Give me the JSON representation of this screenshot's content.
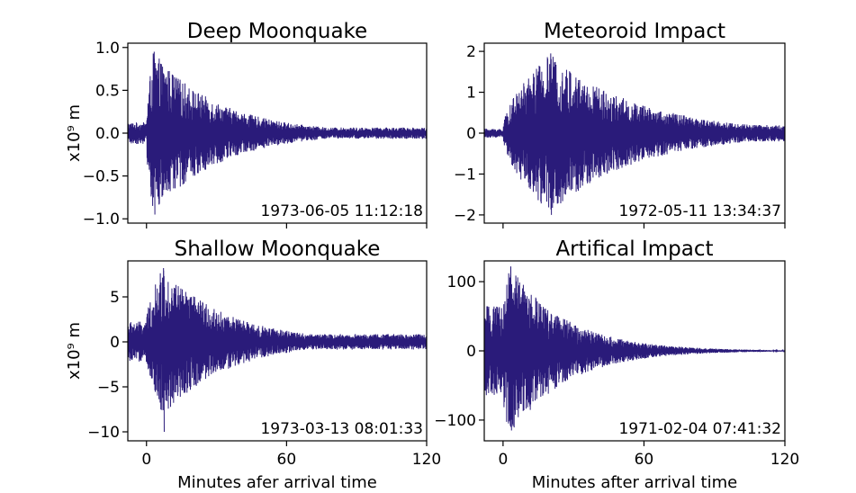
{
  "chart_data": [
    {
      "type": "line",
      "title": "Deep Moonquake",
      "timestamp": "1973-06-05 11:12:18",
      "xlabel": "",
      "ylabel": "x10⁹ m",
      "xlim": [
        -8,
        120
      ],
      "ylim": [
        -1.05,
        1.05
      ],
      "xticks": [
        0,
        60,
        120
      ],
      "yticks": [
        1.0,
        0.5,
        0.0,
        -0.5,
        -1.0
      ],
      "ytick_labels": [
        "1.0",
        "0.5",
        "0.0",
        "−0.5",
        "−1.0"
      ],
      "xtick_labels_shown": false,
      "envelope": {
        "onset": 0,
        "peak_time": 3,
        "peak": 0.95,
        "noise": 0.12,
        "decay": 28,
        "floor": 0.2,
        "min_peak": -0.95
      },
      "series": [
        {
          "color": "#2a1b7a"
        }
      ]
    },
    {
      "type": "line",
      "title": "Meteoroid Impact",
      "timestamp": "1972-05-11 13:34:37",
      "xlabel": "",
      "ylabel": "",
      "xlim": [
        -8,
        120
      ],
      "ylim": [
        -2.2,
        2.2
      ],
      "xticks": [
        0,
        60,
        120
      ],
      "yticks": [
        2,
        1,
        0,
        -1,
        -2
      ],
      "ytick_labels": [
        "2",
        "1",
        "0",
        "−1",
        "−2"
      ],
      "xtick_labels_shown": false,
      "envelope": {
        "onset": 0,
        "peak_time": 20,
        "peak": 1.95,
        "noise": 0.05,
        "decay": 38,
        "floor": 0.3,
        "rise": 20,
        "min_peak": -2.0
      },
      "series": [
        {
          "color": "#2a1b7a"
        }
      ]
    },
    {
      "type": "line",
      "title": "Shallow Moonquake",
      "timestamp": "1973-03-13 08:01:33",
      "xlabel": "Minutes afer arrival time",
      "ylabel": "x10⁹ m",
      "xlim": [
        -8,
        120
      ],
      "ylim": [
        -11,
        9
      ],
      "xticks": [
        0,
        60,
        120
      ],
      "xtick_labels": [
        "0",
        "60",
        "120"
      ],
      "yticks": [
        5,
        0,
        -5,
        -10
      ],
      "ytick_labels": [
        "5",
        "0",
        "−5",
        "−10"
      ],
      "xtick_labels_shown": true,
      "envelope": {
        "onset": 0,
        "peak_time": 7,
        "peak": 8.2,
        "noise": 0.25,
        "decay": 28,
        "floor": 0.3,
        "rise": 7,
        "min_peak": -10.0
      },
      "series": [
        {
          "color": "#2a1b7a"
        }
      ]
    },
    {
      "type": "line",
      "title": "Artifical Impact",
      "timestamp": "1971-02-04 07:41:32",
      "xlabel": "Minutes after arrival time",
      "ylabel": "",
      "xlim": [
        -8,
        120
      ],
      "ylim": [
        -130,
        130
      ],
      "xticks": [
        0,
        60,
        120
      ],
      "xtick_labels": [
        "0",
        "60",
        "120"
      ],
      "yticks": [
        100,
        0,
        -100
      ],
      "ytick_labels": [
        "100",
        "0",
        "−100"
      ],
      "xtick_labels_shown": true,
      "envelope": {
        "onset": 0,
        "peak_time": 3,
        "peak": 122,
        "noise": 0.5,
        "decay": 24,
        "floor": 0.02,
        "rise": 3,
        "min_peak": -115
      },
      "series": [
        {
          "color": "#2a1b7a"
        }
      ]
    }
  ]
}
